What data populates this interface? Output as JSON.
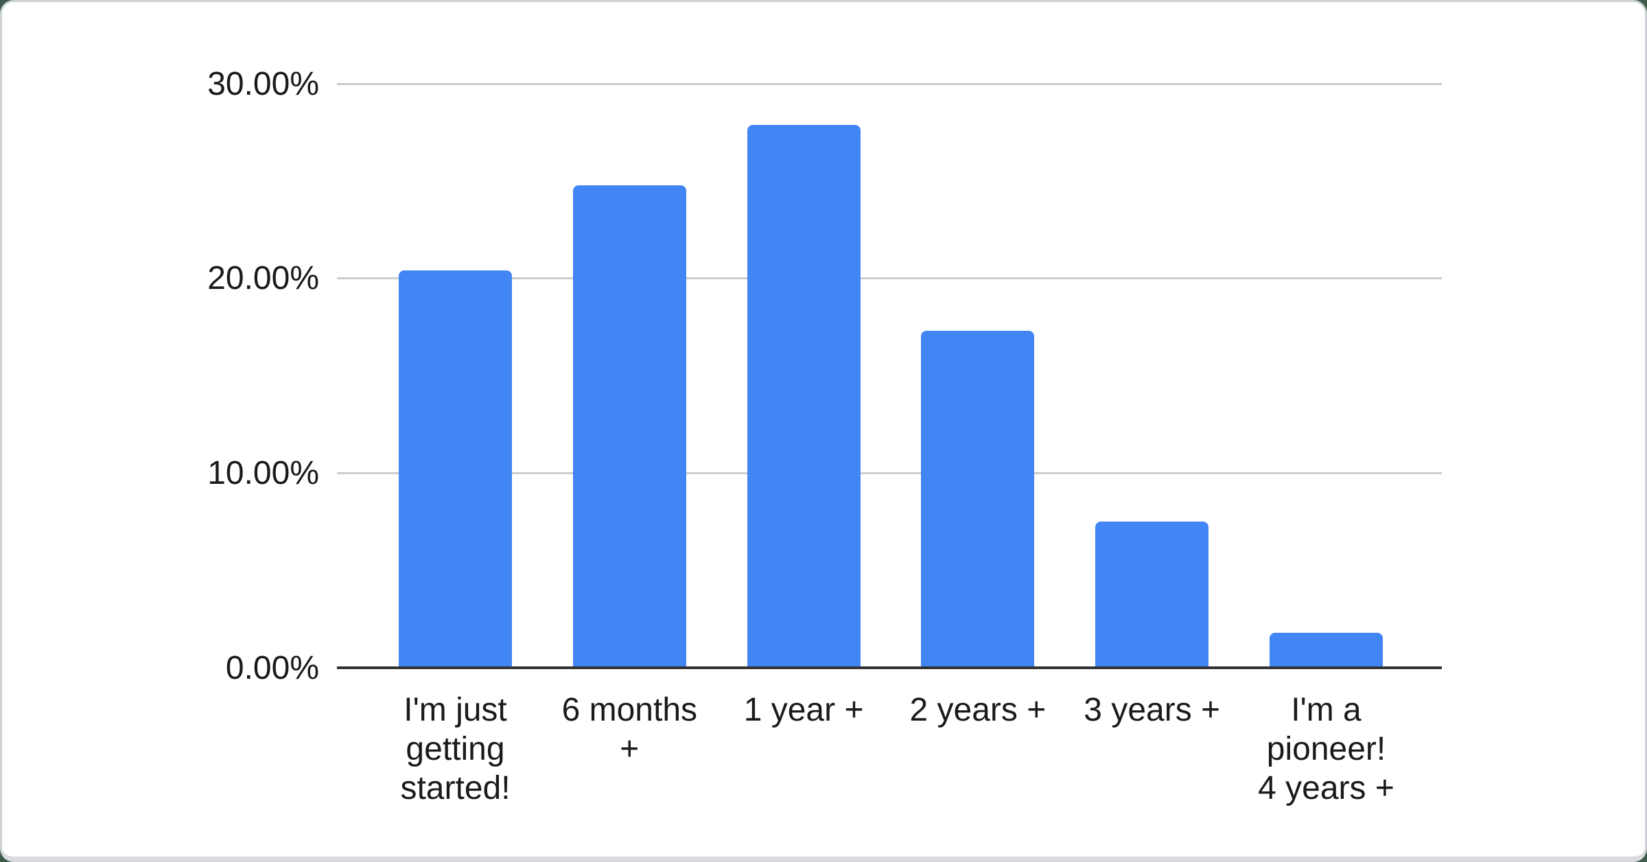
{
  "page": {
    "background_color": "#3E5A4A",
    "card_color": "#FFFFFF",
    "card_border_color": "#CDD1D6"
  },
  "chart_data": {
    "type": "bar",
    "title": "",
    "xlabel": "",
    "ylabel": "",
    "categories": [
      "I'm just getting started!",
      "6 months +",
      "1 year +",
      "2 years +",
      "3 years +",
      "I'm a pioneer! 4 years +"
    ],
    "category_lines": [
      [
        "I'm just",
        "getting",
        "started!"
      ],
      [
        "6 months",
        "+"
      ],
      [
        "1 year +"
      ],
      [
        "2 years +"
      ],
      [
        "3 years +"
      ],
      [
        "I'm a",
        "pioneer!",
        "4 years +"
      ]
    ],
    "values": [
      20.4,
      24.8,
      27.9,
      17.3,
      7.5,
      1.8
    ],
    "unit": "%",
    "ylim": [
      0,
      30
    ],
    "yticks": [
      {
        "value": 0,
        "label": "0.00%"
      },
      {
        "value": 10,
        "label": "10.00%"
      },
      {
        "value": 20,
        "label": "20.00%"
      },
      {
        "value": 30,
        "label": "30.00%"
      }
    ],
    "grid": true,
    "legend": "none",
    "bar_color": "#4285F4",
    "gridline_color": "#CCCCCC",
    "axis_line_color": "#333333",
    "label_color": "#1A1A1A"
  }
}
